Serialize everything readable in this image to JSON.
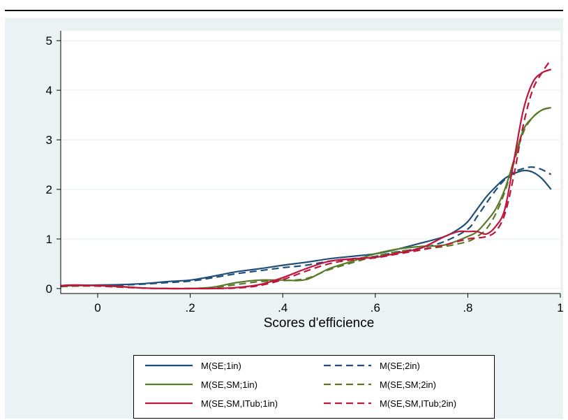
{
  "chart_data": {
    "type": "line",
    "xlabel": "Scores d'efficience",
    "ylabel": "",
    "xlim": [
      -0.08,
      1.0
    ],
    "ylim": [
      -0.1,
      5.2
    ],
    "xticks": [
      0,
      0.2,
      0.4,
      0.6,
      0.8,
      1
    ],
    "xtick_labels": [
      "0",
      ".2",
      ".4",
      ".6",
      ".8",
      "1"
    ],
    "yticks": [
      0,
      1,
      2,
      3,
      4,
      5
    ],
    "ytick_labels": [
      "0",
      "1",
      "2",
      "3",
      "4",
      "5"
    ],
    "grid": "horizontal",
    "legend_position": "bottom",
    "series": [
      {
        "name": "M(SE;1in)",
        "color": "#1f4e79",
        "dash": "solid",
        "x": [
          -0.08,
          -0.05,
          0,
          0.05,
          0.1,
          0.15,
          0.2,
          0.25,
          0.3,
          0.35,
          0.4,
          0.45,
          0.5,
          0.55,
          0.6,
          0.65,
          0.7,
          0.75,
          0.78,
          0.8,
          0.82,
          0.84,
          0.86,
          0.88,
          0.9,
          0.92,
          0.94,
          0.96,
          0.98
        ],
        "y": [
          0.05,
          0.06,
          0.07,
          0.08,
          0.1,
          0.14,
          0.17,
          0.25,
          0.34,
          0.4,
          0.47,
          0.53,
          0.6,
          0.65,
          0.7,
          0.8,
          0.92,
          1.05,
          1.2,
          1.35,
          1.6,
          1.85,
          2.05,
          2.22,
          2.32,
          2.38,
          2.35,
          2.22,
          2.0
        ]
      },
      {
        "name": "M(SE;2in)",
        "color": "#1f4e79",
        "dash": "dashed",
        "x": [
          -0.08,
          -0.05,
          0,
          0.05,
          0.1,
          0.15,
          0.2,
          0.25,
          0.3,
          0.35,
          0.4,
          0.45,
          0.5,
          0.55,
          0.6,
          0.65,
          0.7,
          0.75,
          0.8,
          0.82,
          0.84,
          0.86,
          0.88,
          0.9,
          0.92,
          0.94,
          0.96,
          0.98
        ],
        "y": [
          0.04,
          0.05,
          0.06,
          0.07,
          0.09,
          0.12,
          0.15,
          0.22,
          0.3,
          0.36,
          0.42,
          0.47,
          0.55,
          0.6,
          0.65,
          0.74,
          0.82,
          0.95,
          1.2,
          1.45,
          1.72,
          1.98,
          2.2,
          2.35,
          2.42,
          2.45,
          2.4,
          2.3
        ]
      },
      {
        "name": "M(SE,SM;1in)",
        "color": "#5a7a2a",
        "dash": "solid",
        "x": [
          -0.08,
          -0.05,
          0,
          0.05,
          0.1,
          0.15,
          0.2,
          0.25,
          0.3,
          0.35,
          0.4,
          0.45,
          0.5,
          0.55,
          0.6,
          0.65,
          0.7,
          0.75,
          0.8,
          0.82,
          0.84,
          0.86,
          0.88,
          0.9,
          0.92,
          0.94,
          0.96,
          0.98
        ],
        "y": [
          0.05,
          0.06,
          0.06,
          0.04,
          0.01,
          0.0,
          0.0,
          0.03,
          0.12,
          0.17,
          0.17,
          0.18,
          0.4,
          0.55,
          0.7,
          0.8,
          0.85,
          0.88,
          1.05,
          1.15,
          1.35,
          1.6,
          2.0,
          2.6,
          3.2,
          3.45,
          3.6,
          3.65
        ]
      },
      {
        "name": "M(SE,SM;2in)",
        "color": "#5a7a2a",
        "dash": "dashed",
        "x": [
          -0.08,
          -0.05,
          0,
          0.05,
          0.1,
          0.15,
          0.2,
          0.25,
          0.3,
          0.35,
          0.4,
          0.45,
          0.5,
          0.55,
          0.6,
          0.65,
          0.7,
          0.75,
          0.8,
          0.82,
          0.84,
          0.86,
          0.88,
          0.9,
          0.92,
          0.94,
          0.96,
          0.98
        ],
        "y": [
          0.04,
          0.05,
          0.05,
          0.03,
          0.01,
          0.0,
          0.0,
          0.02,
          0.08,
          0.14,
          0.16,
          0.2,
          0.38,
          0.52,
          0.65,
          0.75,
          0.8,
          0.85,
          0.95,
          1.05,
          1.2,
          1.5,
          1.95,
          2.55,
          3.15,
          3.45,
          3.6,
          3.65
        ]
      },
      {
        "name": "M(SE,SM,ITub;1in)",
        "color": "#c0143c",
        "dash": "solid",
        "x": [
          -0.08,
          -0.05,
          0,
          0.05,
          0.1,
          0.15,
          0.2,
          0.25,
          0.3,
          0.35,
          0.4,
          0.45,
          0.5,
          0.55,
          0.6,
          0.65,
          0.7,
          0.75,
          0.78,
          0.8,
          0.82,
          0.84,
          0.86,
          0.88,
          0.9,
          0.92,
          0.94,
          0.96,
          0.98
        ],
        "y": [
          0.06,
          0.07,
          0.06,
          0.04,
          0.01,
          0.0,
          0.0,
          0.0,
          0.02,
          0.08,
          0.22,
          0.4,
          0.55,
          0.6,
          0.63,
          0.72,
          0.82,
          1.05,
          1.15,
          1.15,
          1.15,
          1.1,
          1.25,
          1.6,
          2.6,
          3.6,
          4.15,
          4.35,
          4.42
        ]
      },
      {
        "name": "M(SE,SM,ITub;2in)",
        "color": "#c0143c",
        "dash": "dashed",
        "x": [
          -0.08,
          -0.05,
          0,
          0.05,
          0.1,
          0.15,
          0.2,
          0.25,
          0.3,
          0.35,
          0.4,
          0.45,
          0.5,
          0.55,
          0.6,
          0.65,
          0.7,
          0.75,
          0.8,
          0.82,
          0.84,
          0.86,
          0.88,
          0.9,
          0.92,
          0.94,
          0.96,
          0.98
        ],
        "y": [
          0.05,
          0.06,
          0.05,
          0.03,
          0.01,
          0.0,
          0.0,
          0.0,
          0.01,
          0.06,
          0.18,
          0.35,
          0.5,
          0.58,
          0.62,
          0.7,
          0.78,
          0.88,
          1.0,
          1.02,
          1.05,
          1.15,
          1.5,
          2.3,
          3.3,
          4.0,
          4.35,
          4.62
        ]
      }
    ]
  }
}
